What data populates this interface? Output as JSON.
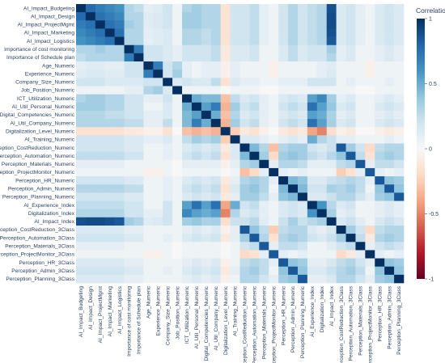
{
  "chart_data": {
    "type": "heatmap",
    "variables": [
      "AI_Impact_Budgeting",
      "AI_Impact_Design",
      "AI_Impact_ProjectMgmt",
      "AI_Impact_Marketing",
      "AI_Impact_Logistics",
      "Importance of cost monitoring",
      "Importance of Schedule plan",
      "Age_Numeric",
      "Experience_Numeric",
      "Company_Size_Numeric",
      "Job_Position_Numeric",
      "ICT_Utilization_Numeric",
      "AI_Util_Personal_Numeric",
      "Digital_Competencies_Numeric",
      "AI_Util_Company_Numeric",
      "Digitalization_Level_Numeric",
      "AI_Training_Numeric",
      "Perception_CostReduction_Numeric",
      "Perception_Automation_Numeric",
      "Perception_Materials_Numeric",
      "Perception_ProjectMonitor_Numeric",
      "Perception_HR_Numeric",
      "Perception_Admin_Numeric",
      "Perception_Planning_Numeric",
      "AI_Experience_Index",
      "Digitalization_Index",
      "AI_Impact_Index",
      "Perception_CostReduction_3Class",
      "Perception_Automation_3Class",
      "Perception_Materials_3Class",
      "Perception_ProjectMonitor_3Class",
      "Perception_HR_3Class",
      "Perception_Admin_3Class",
      "Perception_Planning_3Class"
    ],
    "matrix": [
      [
        1,
        0.78,
        0.7,
        0.65,
        0.6,
        0.3,
        0.25,
        0.1,
        0.12,
        0.2,
        0.05,
        0.3,
        0.35,
        0.3,
        0.3,
        -0.15,
        0.2,
        0.2,
        0.25,
        0.1,
        0.05,
        0.2,
        0.3,
        0.2,
        0.25,
        0.3,
        0.88,
        0.15,
        0.2,
        0.1,
        0.05,
        0.15,
        0.2,
        0.15
      ],
      [
        0.78,
        1,
        0.75,
        0.7,
        0.65,
        0.3,
        0.3,
        0.12,
        0.15,
        0.2,
        0.05,
        0.35,
        0.35,
        0.3,
        0.3,
        -0.15,
        0.2,
        0.2,
        0.25,
        0.1,
        0.05,
        0.2,
        0.3,
        0.2,
        0.25,
        0.3,
        0.9,
        0.15,
        0.2,
        0.1,
        0.05,
        0.15,
        0.2,
        0.15
      ],
      [
        0.7,
        0.75,
        1,
        0.75,
        0.7,
        0.35,
        0.3,
        0.12,
        0.15,
        0.2,
        0.05,
        0.35,
        0.35,
        0.3,
        0.3,
        -0.15,
        0.2,
        0.2,
        0.25,
        0.1,
        0.05,
        0.2,
        0.3,
        0.2,
        0.25,
        0.3,
        0.9,
        0.15,
        0.2,
        0.1,
        0.05,
        0.15,
        0.2,
        0.15
      ],
      [
        0.65,
        0.7,
        0.75,
        1,
        0.75,
        0.3,
        0.3,
        0.1,
        0.12,
        0.15,
        0.05,
        0.3,
        0.3,
        0.25,
        0.3,
        -0.15,
        0.2,
        0.2,
        0.25,
        0.1,
        0.05,
        0.2,
        0.3,
        0.2,
        0.25,
        0.3,
        0.88,
        0.15,
        0.2,
        0.1,
        0.05,
        0.15,
        0.2,
        0.15
      ],
      [
        0.6,
        0.65,
        0.7,
        0.75,
        1,
        0.3,
        0.3,
        0.1,
        0.12,
        0.15,
        0.05,
        0.3,
        0.3,
        0.25,
        0.3,
        -0.15,
        0.2,
        0.2,
        0.25,
        0.1,
        0.05,
        0.2,
        0.3,
        0.2,
        0.25,
        0.3,
        0.85,
        0.15,
        0.2,
        0.1,
        0.05,
        0.15,
        0.2,
        0.15
      ],
      [
        0.3,
        0.3,
        0.35,
        0.3,
        0.3,
        1,
        0.7,
        0.2,
        0.2,
        0.15,
        0.1,
        0.2,
        0.2,
        0.2,
        0.25,
        -0.1,
        0.15,
        0.15,
        0.2,
        0.05,
        0.05,
        0.15,
        0.25,
        0.15,
        0.2,
        0.2,
        0.35,
        0.1,
        0.15,
        0.05,
        0.05,
        0.1,
        0.15,
        0.1
      ],
      [
        0.25,
        0.3,
        0.3,
        0.3,
        0.3,
        0.7,
        1,
        0.2,
        0.2,
        0.15,
        0.1,
        0.2,
        0.2,
        0.2,
        0.25,
        -0.1,
        0.15,
        0.15,
        0.2,
        0.05,
        0.05,
        0.15,
        0.25,
        0.15,
        0.2,
        0.2,
        0.3,
        0.1,
        0.15,
        0.05,
        0.05,
        0.1,
        0.15,
        0.1
      ],
      [
        0.1,
        0.12,
        0.12,
        0.1,
        0.1,
        0.2,
        0.2,
        1,
        0.7,
        0.2,
        0.3,
        0.1,
        0.05,
        0.1,
        0.1,
        -0.05,
        0.1,
        0.05,
        0.05,
        0.05,
        -0.05,
        0.05,
        0.05,
        0.05,
        0.05,
        0.1,
        0.12,
        0.05,
        0.05,
        0.05,
        -0.05,
        0.05,
        0.05,
        0.05
      ],
      [
        0.12,
        0.15,
        0.15,
        0.12,
        0.12,
        0.2,
        0.2,
        0.7,
        1,
        0.2,
        0.35,
        0.1,
        0.05,
        0.1,
        0.1,
        -0.05,
        0.1,
        0.05,
        0.05,
        0.05,
        -0.05,
        0.05,
        0.05,
        0.05,
        0.05,
        0.1,
        0.15,
        0.05,
        0.05,
        0.05,
        -0.05,
        0.05,
        0.05,
        0.05
      ],
      [
        0.2,
        0.2,
        0.2,
        0.15,
        0.15,
        0.15,
        0.15,
        0.2,
        0.2,
        1,
        0.15,
        0.2,
        0.15,
        0.15,
        0.25,
        -0.15,
        0.15,
        0.1,
        0.1,
        0.05,
        0.05,
        0.1,
        0.1,
        0.1,
        0.2,
        0.2,
        0.2,
        0.05,
        0.1,
        0.05,
        0.05,
        0.05,
        0.1,
        0.05
      ],
      [
        0.05,
        0.05,
        0.05,
        0.05,
        0.05,
        0.1,
        0.1,
        0.3,
        0.35,
        0.15,
        1,
        0.05,
        0.05,
        0.05,
        0.05,
        0,
        0.05,
        0.05,
        0.05,
        0,
        0,
        0.05,
        0.05,
        0.05,
        0.05,
        0.05,
        0.05,
        0.05,
        0.05,
        0,
        0,
        0.05,
        0.05,
        0.05
      ],
      [
        0.3,
        0.35,
        0.35,
        0.3,
        0.3,
        0.2,
        0.2,
        0.1,
        0.1,
        0.2,
        0.05,
        1,
        0.5,
        0.45,
        0.45,
        -0.3,
        0.25,
        0.15,
        0.2,
        0.1,
        0.05,
        0.15,
        0.2,
        0.15,
        0.55,
        0.65,
        0.35,
        0.1,
        0.15,
        0.05,
        0.05,
        0.1,
        0.15,
        0.1
      ],
      [
        0.35,
        0.35,
        0.35,
        0.3,
        0.3,
        0.2,
        0.2,
        0.05,
        0.05,
        0.15,
        0.05,
        0.5,
        1,
        0.55,
        0.7,
        -0.35,
        0.35,
        0.2,
        0.25,
        0.1,
        0.05,
        0.2,
        0.25,
        0.2,
        0.75,
        0.55,
        0.38,
        0.15,
        0.2,
        0.05,
        0.05,
        0.15,
        0.2,
        0.15
      ],
      [
        0.3,
        0.3,
        0.3,
        0.25,
        0.25,
        0.2,
        0.2,
        0.1,
        0.1,
        0.15,
        0.05,
        0.45,
        0.55,
        1,
        0.5,
        -0.3,
        0.3,
        0.15,
        0.2,
        0.1,
        0.05,
        0.15,
        0.2,
        0.15,
        0.55,
        0.5,
        0.32,
        0.1,
        0.15,
        0.05,
        0.05,
        0.1,
        0.15,
        0.1
      ],
      [
        0.3,
        0.3,
        0.3,
        0.3,
        0.3,
        0.25,
        0.25,
        0.1,
        0.1,
        0.25,
        0.05,
        0.45,
        0.7,
        0.5,
        1,
        -0.35,
        0.35,
        0.2,
        0.25,
        0.1,
        0.05,
        0.2,
        0.25,
        0.2,
        0.75,
        0.55,
        0.33,
        0.15,
        0.2,
        0.05,
        0.05,
        0.15,
        0.2,
        0.15
      ],
      [
        -0.15,
        -0.15,
        -0.15,
        -0.15,
        -0.15,
        -0.1,
        -0.1,
        -0.05,
        -0.05,
        -0.15,
        0,
        -0.3,
        -0.35,
        -0.3,
        -0.35,
        1,
        -0.25,
        -0.1,
        -0.15,
        -0.05,
        0,
        -0.1,
        -0.15,
        -0.1,
        -0.4,
        -0.5,
        -0.17,
        -0.05,
        -0.1,
        0,
        0,
        -0.05,
        -0.1,
        -0.05
      ],
      [
        0.2,
        0.2,
        0.2,
        0.2,
        0.2,
        0.15,
        0.15,
        0.1,
        0.1,
        0.15,
        0.05,
        0.25,
        0.35,
        0.3,
        0.35,
        -0.25,
        1,
        0.15,
        0.15,
        0.1,
        0.05,
        0.1,
        0.15,
        0.1,
        0.5,
        0.3,
        0.22,
        0.1,
        0.1,
        0.05,
        0.05,
        0.05,
        0.1,
        0.05
      ],
      [
        0.2,
        0.2,
        0.2,
        0.2,
        0.2,
        0.15,
        0.15,
        0.05,
        0.05,
        0.1,
        0.05,
        0.15,
        0.2,
        0.15,
        0.2,
        -0.1,
        0.15,
        1,
        0.45,
        0.3,
        -0.3,
        0.3,
        0.35,
        0.35,
        0.2,
        0.15,
        0.22,
        0.85,
        0.35,
        0.2,
        -0.2,
        0.25,
        0.3,
        0.3
      ],
      [
        0.25,
        0.25,
        0.25,
        0.25,
        0.25,
        0.2,
        0.2,
        0.05,
        0.05,
        0.1,
        0.05,
        0.2,
        0.25,
        0.2,
        0.25,
        -0.15,
        0.15,
        0.45,
        1,
        0.35,
        -0.2,
        0.35,
        0.4,
        0.35,
        0.25,
        0.2,
        0.28,
        0.4,
        0.85,
        0.25,
        -0.15,
        0.3,
        0.35,
        0.3
      ],
      [
        0.1,
        0.1,
        0.1,
        0.1,
        0.1,
        0.05,
        0.05,
        0.05,
        0.05,
        0.05,
        0,
        0.1,
        0.1,
        0.1,
        0.1,
        -0.05,
        0.1,
        0.3,
        0.35,
        1,
        0.1,
        0.3,
        0.3,
        0.25,
        0.1,
        0.1,
        0.11,
        0.25,
        0.3,
        0.85,
        0.1,
        0.25,
        0.25,
        0.2
      ],
      [
        0.05,
        0.05,
        0.05,
        0.05,
        0.05,
        0.05,
        0.05,
        -0.05,
        -0.05,
        0.05,
        0,
        0.05,
        0.05,
        0.05,
        0.05,
        0,
        0.05,
        -0.3,
        -0.2,
        0.1,
        1,
        0.1,
        0.05,
        0.1,
        0.05,
        0.05,
        0.05,
        -0.25,
        -0.15,
        0.1,
        0.85,
        0.1,
        0.05,
        0.1
      ],
      [
        0.2,
        0.2,
        0.2,
        0.2,
        0.2,
        0.15,
        0.15,
        0.05,
        0.05,
        0.1,
        0.05,
        0.15,
        0.2,
        0.15,
        0.2,
        -0.1,
        0.1,
        0.3,
        0.35,
        0.3,
        0.1,
        1,
        0.45,
        0.4,
        0.15,
        0.15,
        0.22,
        0.25,
        0.3,
        0.25,
        0.1,
        0.85,
        0.4,
        0.35
      ],
      [
        0.3,
        0.3,
        0.3,
        0.3,
        0.3,
        0.25,
        0.25,
        0.05,
        0.05,
        0.1,
        0.05,
        0.2,
        0.25,
        0.2,
        0.25,
        -0.15,
        0.15,
        0.35,
        0.4,
        0.3,
        0.05,
        0.45,
        1,
        0.45,
        0.2,
        0.2,
        0.33,
        0.3,
        0.35,
        0.25,
        0.05,
        0.4,
        0.85,
        0.4
      ],
      [
        0.2,
        0.2,
        0.2,
        0.2,
        0.2,
        0.15,
        0.15,
        0.05,
        0.05,
        0.1,
        0.05,
        0.15,
        0.2,
        0.15,
        0.2,
        -0.1,
        0.1,
        0.35,
        0.35,
        0.25,
        0.1,
        0.4,
        0.45,
        1,
        0.15,
        0.15,
        0.22,
        0.3,
        0.3,
        0.2,
        0.1,
        0.35,
        0.4,
        0.85
      ],
      [
        0.25,
        0.25,
        0.25,
        0.25,
        0.25,
        0.2,
        0.2,
        0.05,
        0.05,
        0.2,
        0.05,
        0.55,
        0.75,
        0.55,
        0.75,
        -0.4,
        0.5,
        0.2,
        0.25,
        0.1,
        0.05,
        0.15,
        0.2,
        0.15,
        1,
        0.6,
        0.28,
        0.15,
        0.2,
        0.05,
        0.05,
        0.1,
        0.15,
        0.1
      ],
      [
        0.3,
        0.3,
        0.3,
        0.3,
        0.3,
        0.2,
        0.2,
        0.1,
        0.1,
        0.2,
        0.05,
        0.65,
        0.55,
        0.5,
        0.55,
        -0.5,
        0.3,
        0.15,
        0.2,
        0.1,
        0.05,
        0.15,
        0.2,
        0.15,
        0.6,
        1,
        0.33,
        0.1,
        0.15,
        0.05,
        0.05,
        0.1,
        0.15,
        0.1
      ],
      [
        0.88,
        0.9,
        0.9,
        0.88,
        0.85,
        0.35,
        0.3,
        0.12,
        0.15,
        0.2,
        0.05,
        0.35,
        0.38,
        0.32,
        0.33,
        -0.17,
        0.22,
        0.22,
        0.28,
        0.11,
        0.05,
        0.22,
        0.33,
        0.22,
        0.28,
        0.33,
        1,
        0.17,
        0.22,
        0.11,
        0.05,
        0.17,
        0.22,
        0.17
      ],
      [
        0.15,
        0.15,
        0.15,
        0.15,
        0.15,
        0.1,
        0.1,
        0.05,
        0.05,
        0.05,
        0.05,
        0.1,
        0.15,
        0.1,
        0.15,
        -0.05,
        0.1,
        0.85,
        0.4,
        0.25,
        -0.25,
        0.25,
        0.3,
        0.3,
        0.15,
        0.1,
        0.17,
        1,
        0.35,
        0.2,
        -0.2,
        0.25,
        0.3,
        0.3
      ],
      [
        0.2,
        0.2,
        0.2,
        0.2,
        0.2,
        0.15,
        0.15,
        0.05,
        0.05,
        0.1,
        0.05,
        0.15,
        0.2,
        0.15,
        0.2,
        -0.1,
        0.1,
        0.35,
        0.85,
        0.3,
        -0.15,
        0.3,
        0.35,
        0.3,
        0.2,
        0.15,
        0.22,
        0.35,
        1,
        0.25,
        -0.1,
        0.3,
        0.35,
        0.3
      ],
      [
        0.1,
        0.1,
        0.1,
        0.1,
        0.1,
        0.05,
        0.05,
        0.05,
        0.05,
        0.05,
        0,
        0.05,
        0.05,
        0.05,
        0.05,
        0,
        0.05,
        0.2,
        0.25,
        0.85,
        0.1,
        0.25,
        0.25,
        0.2,
        0.05,
        0.05,
        0.11,
        0.2,
        0.25,
        1,
        0.1,
        0.2,
        0.25,
        0.2
      ],
      [
        0.05,
        0.05,
        0.05,
        0.05,
        0.05,
        0.05,
        0.05,
        -0.05,
        -0.05,
        0.05,
        0,
        0.05,
        0.05,
        0.05,
        0.05,
        0,
        0.05,
        -0.2,
        -0.15,
        0.1,
        0.85,
        0.1,
        0.05,
        0.1,
        0.05,
        0.05,
        0.05,
        -0.2,
        -0.1,
        0.1,
        1,
        0.1,
        0.05,
        0.1
      ],
      [
        0.15,
        0.15,
        0.15,
        0.15,
        0.15,
        0.1,
        0.1,
        0.05,
        0.05,
        0.05,
        0.05,
        0.1,
        0.15,
        0.1,
        0.15,
        -0.05,
        0.05,
        0.25,
        0.3,
        0.25,
        0.1,
        0.85,
        0.4,
        0.35,
        0.1,
        0.1,
        0.17,
        0.25,
        0.3,
        0.2,
        0.1,
        1,
        0.4,
        0.35
      ],
      [
        0.2,
        0.2,
        0.2,
        0.2,
        0.2,
        0.15,
        0.15,
        0.05,
        0.05,
        0.1,
        0.05,
        0.15,
        0.2,
        0.15,
        0.2,
        -0.1,
        0.1,
        0.3,
        0.35,
        0.25,
        0.05,
        0.4,
        0.85,
        0.4,
        0.15,
        0.15,
        0.22,
        0.3,
        0.35,
        0.25,
        0.05,
        0.4,
        1,
        0.4
      ],
      [
        0.15,
        0.15,
        0.15,
        0.15,
        0.15,
        0.1,
        0.1,
        0.05,
        0.05,
        0.05,
        0.05,
        0.1,
        0.15,
        0.1,
        0.15,
        -0.05,
        0.05,
        0.3,
        0.3,
        0.2,
        0.1,
        0.35,
        0.4,
        0.85,
        0.1,
        0.1,
        0.17,
        0.3,
        0.3,
        0.2,
        0.1,
        0.35,
        0.4,
        1
      ]
    ],
    "zlim": [
      -1,
      1
    ],
    "colorbar": {
      "title": "Correlation",
      "ticks": [
        1,
        0.5,
        0,
        -0.5,
        -1
      ],
      "tick_labels": [
        "1",
        "0.5",
        "0",
        "-0.5",
        "-1"
      ],
      "colors": [
        "#67001f",
        "#b2182b",
        "#d6604d",
        "#f4a582",
        "#fddbc7",
        "#f7f7f7",
        "#d1e5f0",
        "#92c5de",
        "#4393c3",
        "#2166ac",
        "#053061"
      ]
    },
    "legend": "right"
  }
}
